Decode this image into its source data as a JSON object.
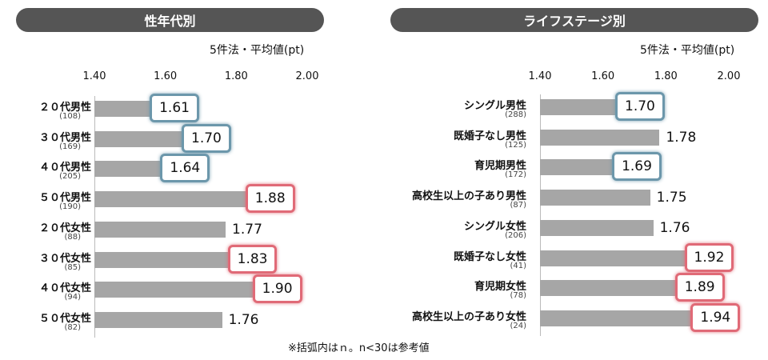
{
  "chart_data": [
    {
      "type": "bar",
      "orientation": "horizontal",
      "title": "性年代別",
      "unit": "5件法・平均値(pt)",
      "xlim": [
        1.4,
        2.0
      ],
      "ticks": [
        "1.40",
        "1.60",
        "1.80",
        "2.00"
      ],
      "categories": [
        "２０代男性",
        "３０代男性",
        "４０代男性",
        "５０代男性",
        "２０代女性",
        "３０代女性",
        "４０代女性",
        "５０代女性"
      ],
      "n": [
        "(108)",
        "(169)",
        "(205)",
        "(190)",
        "(88)",
        "(85)",
        "(94)",
        "(82)"
      ],
      "values": [
        1.61,
        1.7,
        1.64,
        1.88,
        1.77,
        1.83,
        1.9,
        1.76
      ],
      "labels": [
        "1.61",
        "1.70",
        "1.64",
        "1.88",
        "1.77",
        "1.83",
        "1.90",
        "1.76"
      ],
      "highlight": [
        "low",
        "low",
        "low",
        "high",
        "none",
        "high",
        "high",
        "none"
      ]
    },
    {
      "type": "bar",
      "orientation": "horizontal",
      "title": "ライフステージ別",
      "unit": "5件法・平均値(pt)",
      "xlim": [
        1.4,
        2.0
      ],
      "ticks": [
        "1.40",
        "1.60",
        "1.80",
        "2.00"
      ],
      "categories": [
        "シングル男性",
        "既婚子なし男性",
        "育児期男性",
        "高校生以上の子あり男性",
        "シングル女性",
        "既婚子なし女性",
        "育児期女性",
        "高校生以上の子あり女性"
      ],
      "n": [
        "(288)",
        "(125)",
        "(172)",
        "(87)",
        "(206)",
        "(41)",
        "(78)",
        "(24)"
      ],
      "values": [
        1.7,
        1.78,
        1.69,
        1.75,
        1.76,
        1.92,
        1.89,
        1.94
      ],
      "labels": [
        "1.70",
        "1.78",
        "1.69",
        "1.75",
        "1.76",
        "1.92",
        "1.89",
        "1.94"
      ],
      "highlight": [
        "low",
        "none",
        "low",
        "none",
        "none",
        "high",
        "high",
        "high"
      ]
    }
  ],
  "footnote": "※括弧内はｎ。n<30は参考値",
  "colors": {
    "bar": "#a6a6a6",
    "header": "#555555",
    "low_box": "#6c97ab",
    "high_box": "#e06a77"
  }
}
